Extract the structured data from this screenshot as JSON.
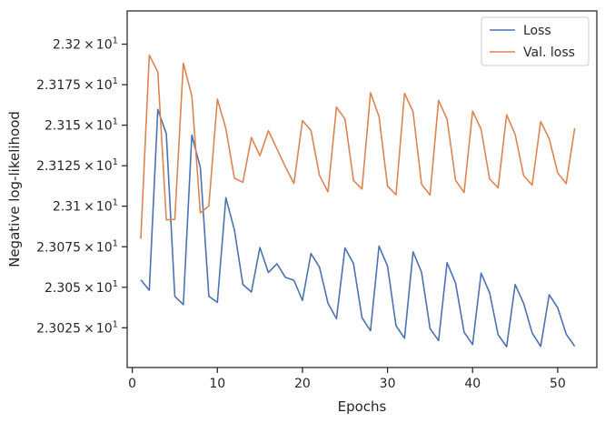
{
  "chart_data": {
    "type": "line",
    "title": "",
    "xlabel": "Epochs",
    "ylabel": "Negative log-likelihood",
    "xlim": [
      -0.6,
      54.6
    ],
    "ylim": [
      23.0005,
      23.2205
    ],
    "grid": false,
    "legend_position": "top-right",
    "x_ticks": [
      {
        "value": 0,
        "label": "0"
      },
      {
        "value": 10,
        "label": "10"
      },
      {
        "value": 20,
        "label": "20"
      },
      {
        "value": 30,
        "label": "30"
      },
      {
        "value": 40,
        "label": "40"
      },
      {
        "value": 50,
        "label": "50"
      }
    ],
    "y_ticks": [
      {
        "value": 23.025,
        "mantissa": "2.3025",
        "exp": "1"
      },
      {
        "value": 23.05,
        "mantissa": "2.305",
        "exp": "1"
      },
      {
        "value": 23.075,
        "mantissa": "2.3075",
        "exp": "1"
      },
      {
        "value": 23.1,
        "mantissa": "2.31",
        "exp": "1"
      },
      {
        "value": 23.125,
        "mantissa": "2.3125",
        "exp": "1"
      },
      {
        "value": 23.15,
        "mantissa": "2.315",
        "exp": "1"
      },
      {
        "value": 23.175,
        "mantissa": "2.3175",
        "exp": "1"
      },
      {
        "value": 23.2,
        "mantissa": "2.32",
        "exp": "1"
      }
    ],
    "tick_times_symbol": "×",
    "tick_base": "10",
    "x": [
      1,
      2,
      3,
      4,
      5,
      6,
      7,
      8,
      9,
      10,
      11,
      12,
      13,
      14,
      15,
      16,
      17,
      18,
      19,
      20,
      21,
      22,
      23,
      24,
      25,
      26,
      27,
      28,
      29,
      30,
      31,
      32,
      33,
      34,
      35,
      36,
      37,
      38,
      39,
      40,
      41,
      42,
      43,
      44,
      45,
      46,
      47,
      48,
      49,
      50,
      51,
      52
    ],
    "series": [
      {
        "name": "Loss",
        "color": "#4c72b0",
        "values": [
          23.0546,
          23.0482,
          23.1597,
          23.1447,
          23.0444,
          23.0393,
          23.1439,
          23.1238,
          23.0445,
          23.0407,
          23.1053,
          23.0855,
          23.0517,
          23.0471,
          23.0745,
          23.0591,
          23.0645,
          23.0561,
          23.0543,
          23.0419,
          23.0708,
          23.0625,
          23.0402,
          23.0306,
          23.0743,
          23.0646,
          23.0312,
          23.0232,
          23.0754,
          23.0631,
          23.0262,
          23.0186,
          23.0719,
          23.0593,
          23.0245,
          23.0171,
          23.0652,
          23.0525,
          23.0223,
          23.0147,
          23.0587,
          23.0466,
          23.0207,
          23.0133,
          23.0517,
          23.0401,
          23.0218,
          23.0135,
          23.0454,
          23.0374,
          23.0211,
          23.0136
        ]
      },
      {
        "name": "Val. loss",
        "color": "#dd8452",
        "values": [
          23.0799,
          23.1932,
          23.1829,
          23.0916,
          23.0919,
          23.1882,
          23.1681,
          23.0959,
          23.1002,
          23.1661,
          23.1479,
          23.1173,
          23.1148,
          23.1424,
          23.1312,
          23.1466,
          23.1354,
          23.1242,
          23.1141,
          23.1528,
          23.1468,
          23.1191,
          23.1089,
          23.1612,
          23.1538,
          23.1159,
          23.1106,
          23.17,
          23.1554,
          23.1124,
          23.1071,
          23.1697,
          23.1583,
          23.1136,
          23.1069,
          23.1653,
          23.1537,
          23.116,
          23.1085,
          23.1587,
          23.1474,
          23.1168,
          23.1114,
          23.1565,
          23.1443,
          23.1189,
          23.113,
          23.1522,
          23.1417,
          23.1206,
          23.1139,
          23.1481
        ]
      }
    ]
  }
}
